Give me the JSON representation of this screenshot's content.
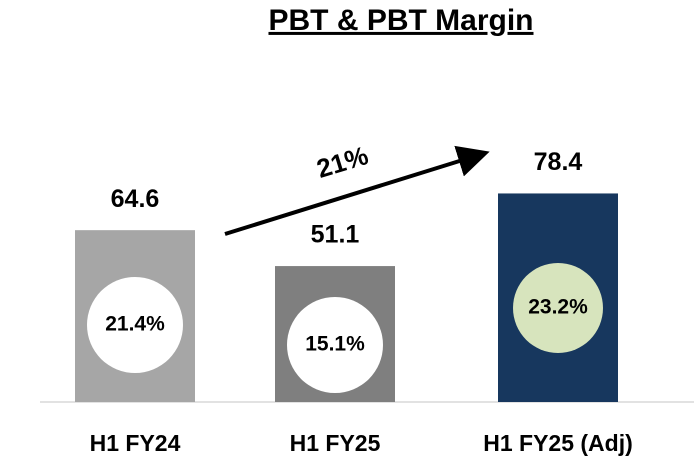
{
  "chart_data": {
    "type": "bar",
    "title": "PBT & PBT Margin",
    "categories": [
      "H1 FY24",
      "H1 FY25",
      "H1 FY25 (Adj)"
    ],
    "values": [
      64.6,
      51.1,
      78.4
    ],
    "colors": [
      "#a6a6a6",
      "#7f7f7f",
      "#17375e"
    ],
    "ylim": [
      0,
      100
    ],
    "margins": [
      21.4,
      15.1,
      23.2
    ],
    "margin_labels": [
      "21.4%",
      "15.1%",
      "23.2%"
    ],
    "margin_colors": [
      "#ffffff",
      "#ffffff",
      "#d7e4bd"
    ],
    "annotation": "21%"
  }
}
